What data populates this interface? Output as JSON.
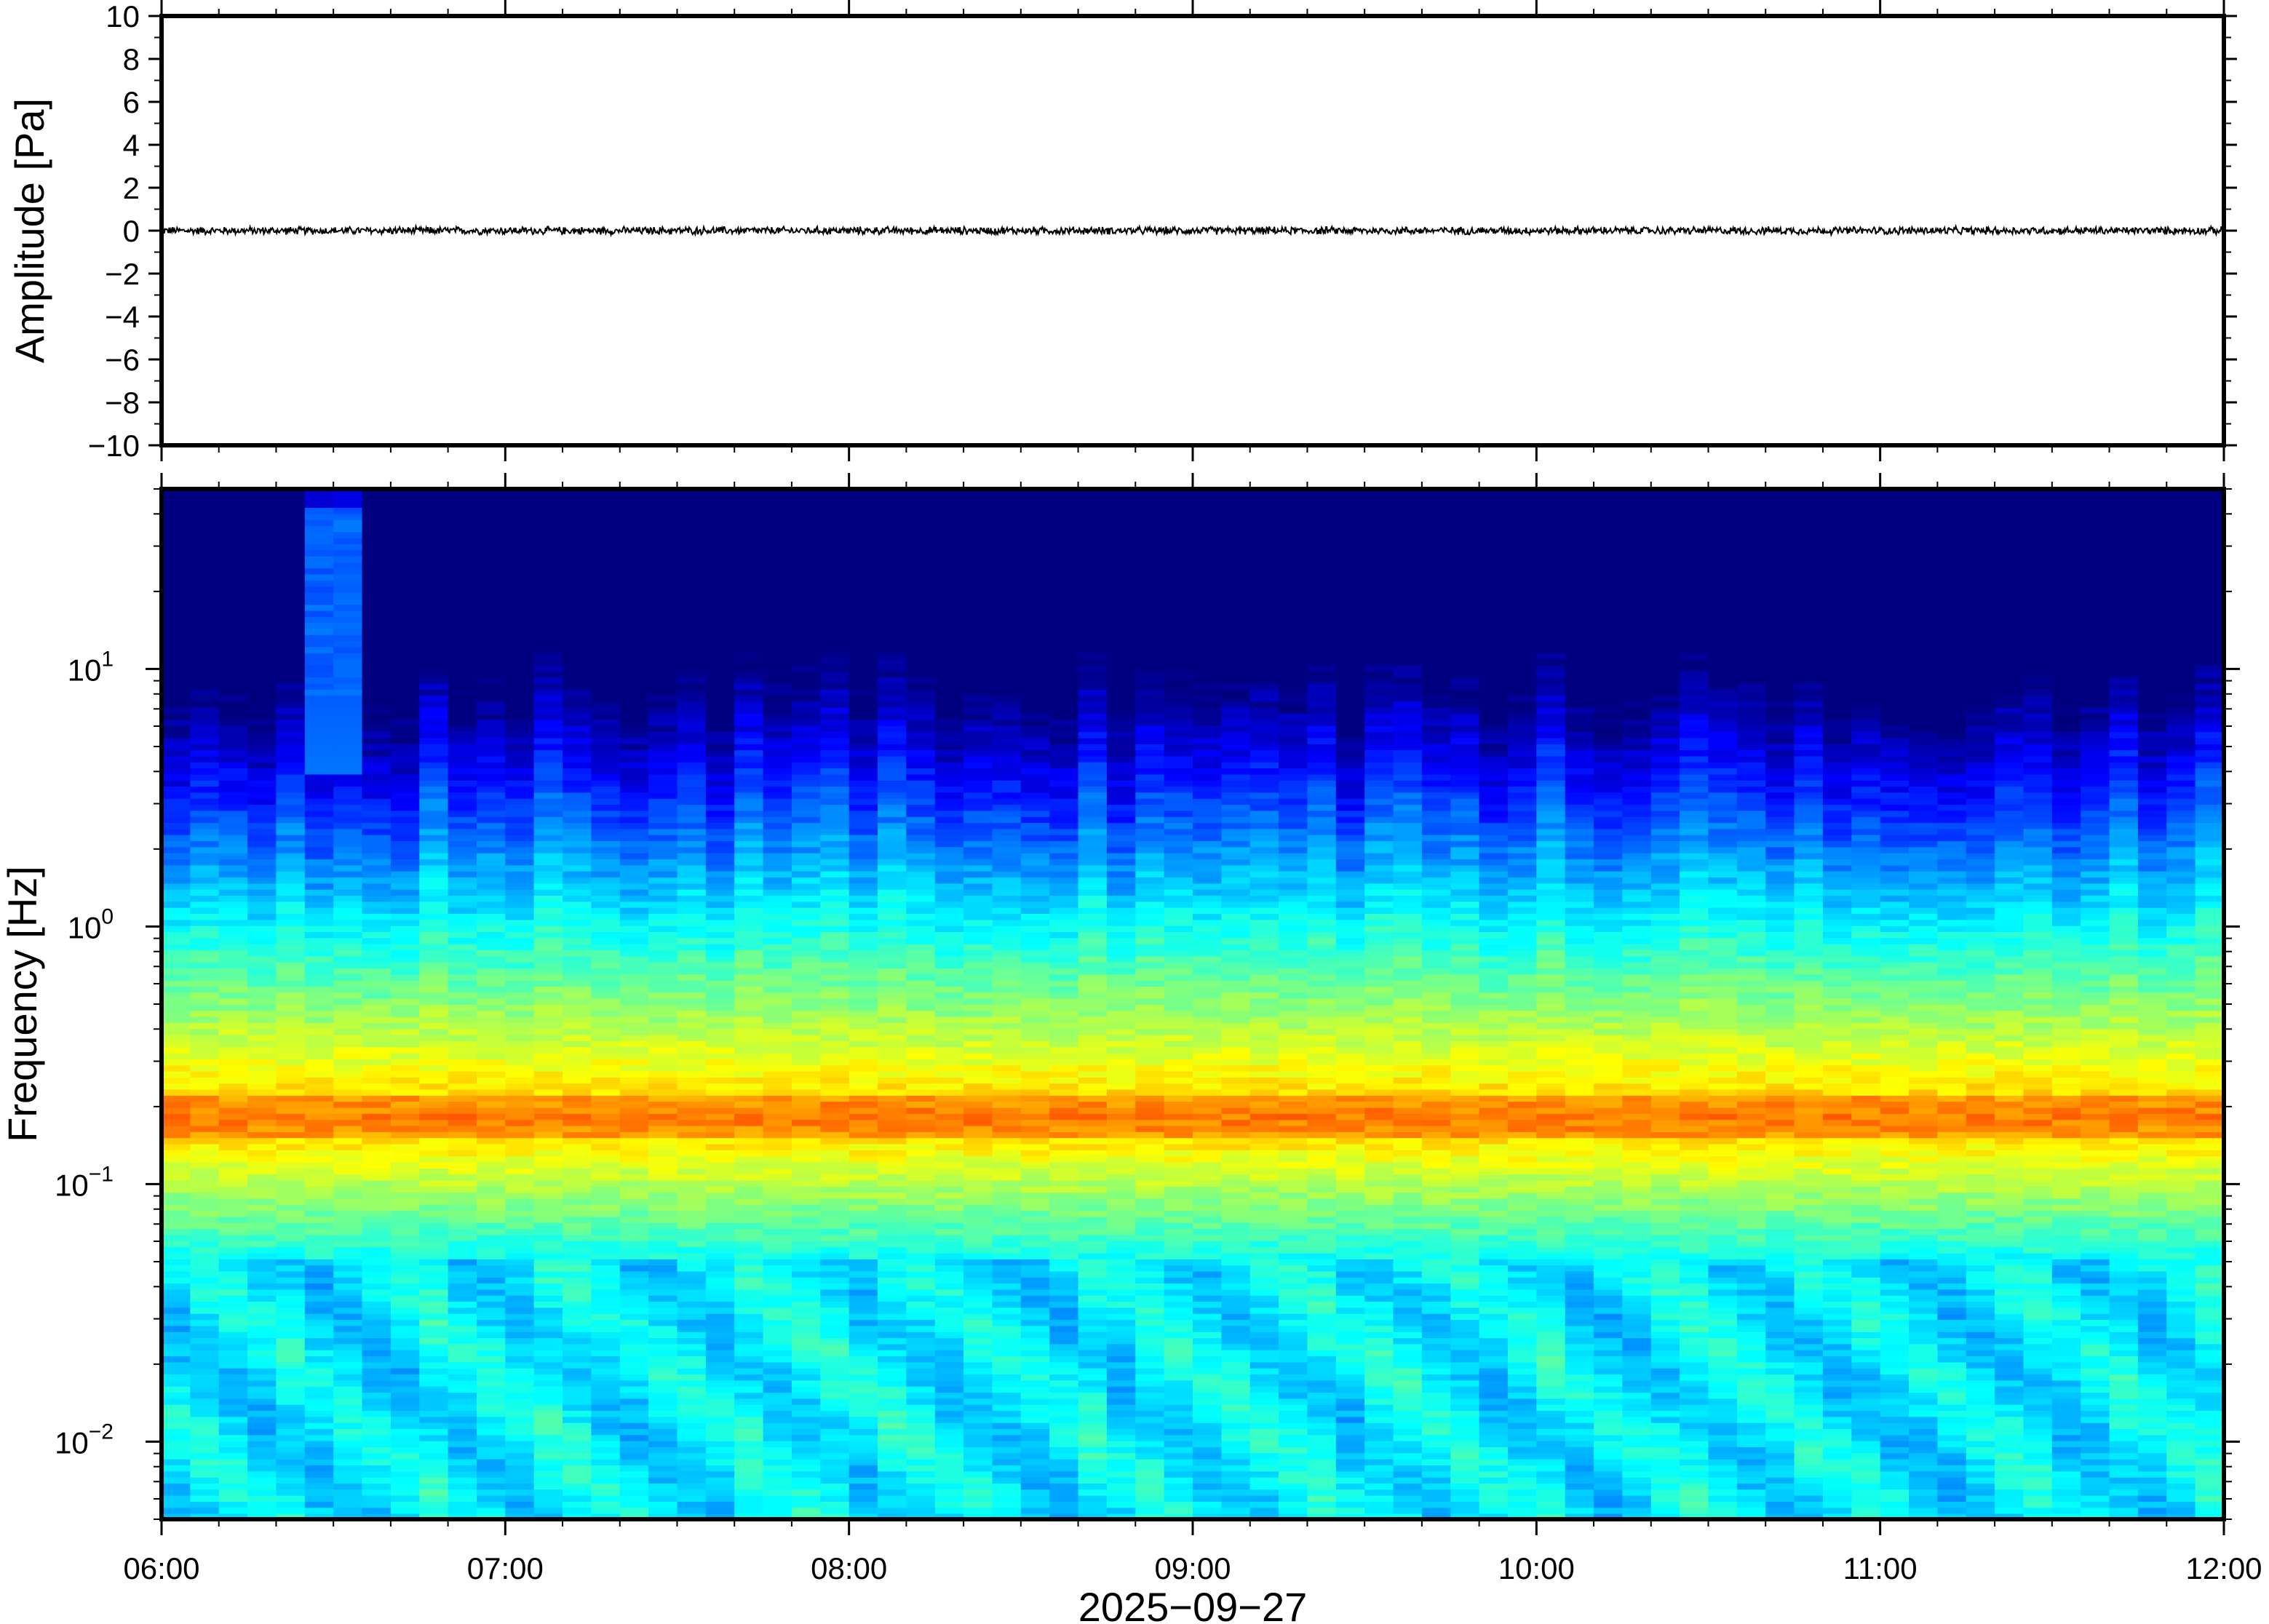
{
  "chart_data": [
    {
      "type": "line",
      "panel": "waveform",
      "title": "",
      "xlabel": "",
      "ylabel": "Amplitude [Pa]",
      "ylim": [
        -10,
        10
      ],
      "y_ticks": [
        10,
        8,
        6,
        4,
        2,
        0,
        -2,
        -4,
        -6,
        -8,
        -10
      ],
      "y_tick_labels": [
        "10",
        "8",
        "6",
        "4",
        "2",
        "0",
        "−2",
        "−4",
        "−6",
        "−8",
        "−10"
      ],
      "xlim": [
        "06:00",
        "12:00"
      ],
      "grid": false,
      "series": [
        {
          "description_values_hours": [
            6.0,
            12.0
          ],
          "mean_amplitude": 0.0,
          "noise_amplitude_approx": 0.15
        }
      ],
      "line_color": "#000000"
    },
    {
      "type": "heatmap",
      "panel": "spectrogram",
      "title": "",
      "xlabel": "2025−09−27",
      "ylabel": "Frequency [Hz]",
      "y_scale": "log",
      "ylim": [
        0.005,
        50
      ],
      "y_tick_values": [
        10,
        1,
        0.1,
        0.01
      ],
      "y_tick_labels": [
        {
          "base": "10",
          "exp": "1"
        },
        {
          "base": "10",
          "exp": "0"
        },
        {
          "base": "10",
          "exp": "−1"
        },
        {
          "base": "10",
          "exp": "−2"
        }
      ],
      "x_tick_hours": [
        6,
        7,
        8,
        9,
        10,
        11,
        12
      ],
      "x_tick_labels": [
        "06:00",
        "07:00",
        "08:00",
        "09:00",
        "10:00",
        "11:00",
        "12:00"
      ],
      "colormap": "jet",
      "grid": false,
      "peak_band_hz": 0.18
    }
  ]
}
